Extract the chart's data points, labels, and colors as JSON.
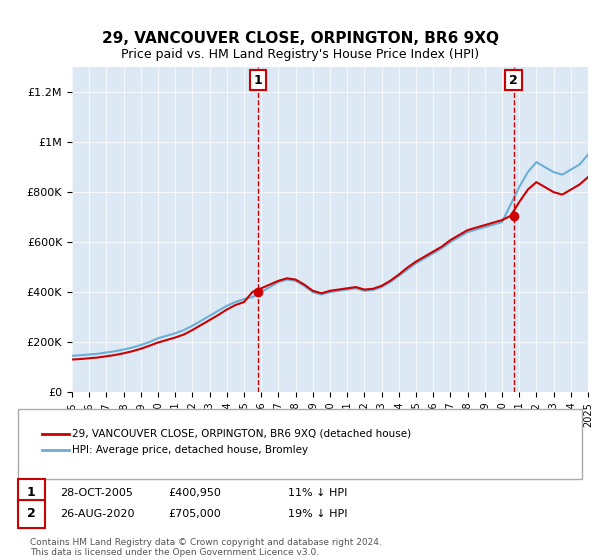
{
  "title": "29, VANCOUVER CLOSE, ORPINGTON, BR6 9XQ",
  "subtitle": "Price paid vs. HM Land Registry's House Price Index (HPI)",
  "background_color": "#dce9f5",
  "plot_bg_color": "#dce9f5",
  "hpi_color": "#6baed6",
  "price_color": "#cc0000",
  "marker1_date_idx": 10.83,
  "marker2_date_idx": 25.67,
  "marker1_price": 400950,
  "marker2_price": 705000,
  "marker1_label": "1",
  "marker2_label": "2",
  "marker1_date_str": "28-OCT-2005",
  "marker2_date_str": "26-AUG-2020",
  "marker1_pct": "11% ↓ HPI",
  "marker2_pct": "19% ↓ HPI",
  "legend_line1": "29, VANCOUVER CLOSE, ORPINGTON, BR6 9XQ (detached house)",
  "legend_line2": "HPI: Average price, detached house, Bromley",
  "footer": "Contains HM Land Registry data © Crown copyright and database right 2024.\nThis data is licensed under the Open Government Licence v3.0.",
  "ylim": [
    0,
    1300000
  ],
  "yticks": [
    0,
    200000,
    400000,
    600000,
    800000,
    1000000,
    1200000
  ],
  "ytick_labels": [
    "£0",
    "£200K",
    "£400K",
    "£600K",
    "£800K",
    "£1M",
    "£1.2M"
  ],
  "x_start_year": 1995,
  "x_end_year": 2025,
  "hpi_years": [
    1995,
    1995.5,
    1996,
    1996.5,
    1997,
    1997.5,
    1998,
    1998.5,
    1999,
    1999.5,
    2000,
    2000.5,
    2001,
    2001.5,
    2002,
    2002.5,
    2003,
    2003.5,
    2004,
    2004.5,
    2005,
    2005.5,
    2006,
    2006.5,
    2007,
    2007.5,
    2008,
    2008.5,
    2009,
    2009.5,
    2010,
    2010.5,
    2011,
    2011.5,
    2012,
    2012.5,
    2013,
    2013.5,
    2014,
    2014.5,
    2015,
    2015.5,
    2016,
    2016.5,
    2017,
    2017.5,
    2018,
    2018.5,
    2019,
    2019.5,
    2020,
    2020.5,
    2021,
    2021.5,
    2022,
    2022.5,
    2023,
    2023.5,
    2024,
    2024.5,
    2025
  ],
  "hpi_values": [
    145000,
    147000,
    150000,
    153000,
    158000,
    163000,
    170000,
    178000,
    188000,
    200000,
    215000,
    225000,
    235000,
    248000,
    265000,
    285000,
    305000,
    325000,
    345000,
    360000,
    372000,
    380000,
    400000,
    420000,
    440000,
    450000,
    445000,
    425000,
    400000,
    390000,
    400000,
    405000,
    410000,
    415000,
    405000,
    408000,
    420000,
    440000,
    465000,
    490000,
    515000,
    535000,
    555000,
    575000,
    600000,
    620000,
    640000,
    650000,
    660000,
    670000,
    680000,
    750000,
    820000,
    880000,
    920000,
    900000,
    880000,
    870000,
    890000,
    910000,
    950000
  ],
  "price_years": [
    1995,
    1995.5,
    1996,
    1996.5,
    1997,
    1997.5,
    1998,
    1998.5,
    1999,
    1999.5,
    2000,
    2000.5,
    2001,
    2001.5,
    2002,
    2002.5,
    2003,
    2003.5,
    2004,
    2004.5,
    2005,
    2005.5,
    2006,
    2006.5,
    2007,
    2007.5,
    2008,
    2008.5,
    2009,
    2009.5,
    2010,
    2010.5,
    2011,
    2011.5,
    2012,
    2012.5,
    2013,
    2013.5,
    2014,
    2014.5,
    2015,
    2015.5,
    2016,
    2016.5,
    2017,
    2017.5,
    2018,
    2018.5,
    2019,
    2019.5,
    2020,
    2020.5,
    2021,
    2021.5,
    2022,
    2022.5,
    2023,
    2023.5,
    2024,
    2024.5,
    2025
  ],
  "price_values": [
    130000,
    132000,
    135000,
    138000,
    143000,
    148000,
    155000,
    163000,
    173000,
    185000,
    198000,
    208000,
    218000,
    230000,
    248000,
    268000,
    288000,
    308000,
    330000,
    348000,
    360000,
    400950,
    415000,
    430000,
    445000,
    455000,
    450000,
    430000,
    405000,
    395000,
    405000,
    410000,
    415000,
    420000,
    410000,
    413000,
    425000,
    445000,
    470000,
    498000,
    522000,
    542000,
    562000,
    582000,
    608000,
    628000,
    648000,
    658000,
    668000,
    678000,
    688000,
    705000,
    760000,
    810000,
    840000,
    820000,
    800000,
    790000,
    810000,
    830000,
    860000
  ],
  "marker1_x": 2005.83,
  "marker2_x": 2020.67
}
